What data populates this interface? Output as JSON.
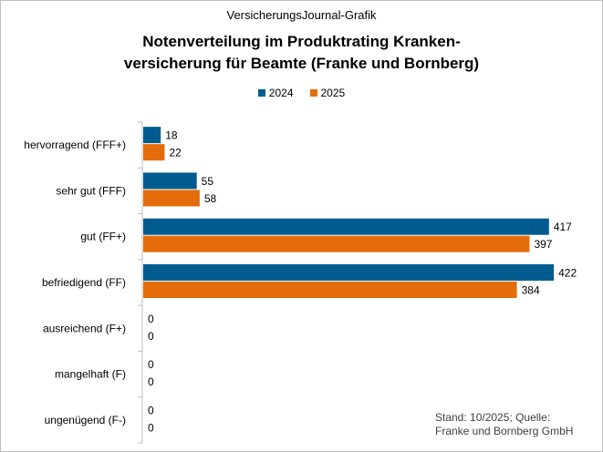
{
  "header": {
    "source_label": "VersicherungsJournal-Grafik",
    "title_line1": "Notenverteilung im Produktrating Kranken-",
    "title_line2": "versicherung für Beamte (Franke und Bornberg)"
  },
  "footnote": {
    "line1": "Stand: 10/2025;  Quelle:",
    "line2": "Franke und Bornberg  GmbH"
  },
  "colors": {
    "series_2024": "#005C8F",
    "series_2025": "#E46C0A",
    "axis": "#bfbfbf"
  },
  "chart_data": {
    "type": "bar",
    "orientation": "horizontal",
    "title": "Notenverteilung im Produktrating Krankenversicherung für Beamte (Franke und Bornberg)",
    "categories": [
      "hervorragend (FFF+)",
      "sehr gut (FFF)",
      "gut (FF+)",
      "befriedigend (FF)",
      "ausreichend (F+)",
      "mangelhaft (F)",
      "ungenügend (F-)"
    ],
    "series": [
      {
        "name": "2024",
        "values": [
          18,
          55,
          417,
          422,
          0,
          0,
          0
        ]
      },
      {
        "name": "2025",
        "values": [
          22,
          58,
          397,
          384,
          0,
          0,
          0
        ]
      }
    ],
    "xlim": [
      0,
      450
    ],
    "legend_position": "top",
    "data_labels": true,
    "grid": false
  }
}
